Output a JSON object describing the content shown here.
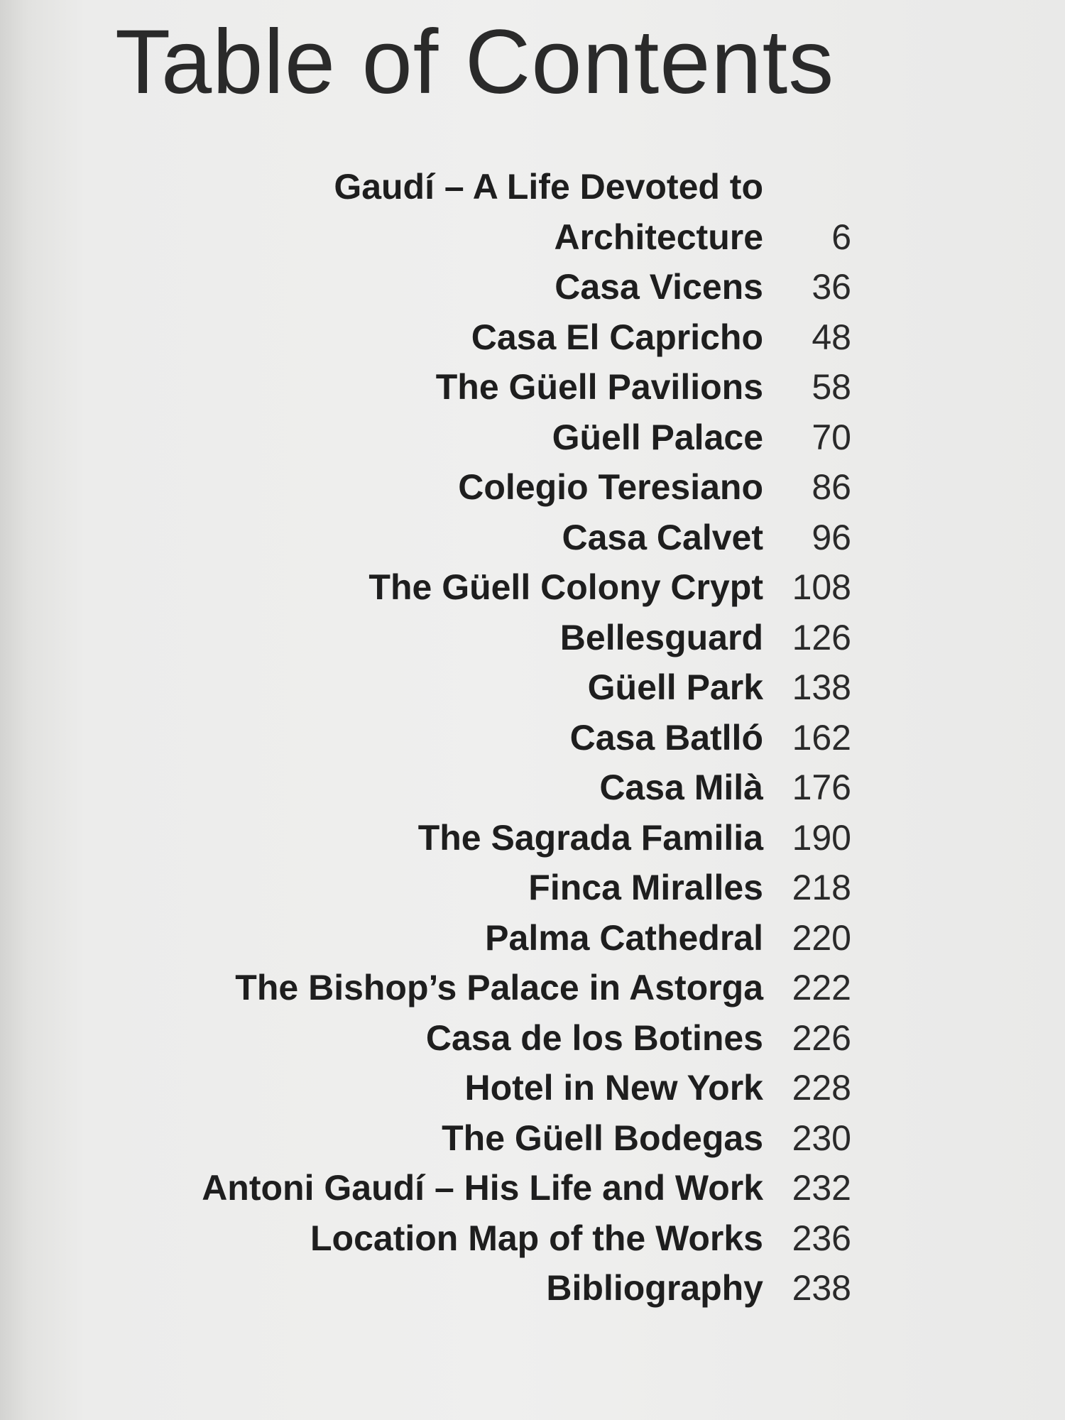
{
  "heading": "Table of Contents",
  "entries": [
    {
      "title": "Gaudí – A Life Devoted to\nArchitecture",
      "page": "6"
    },
    {
      "title": "Casa Vicens",
      "page": "36"
    },
    {
      "title": "Casa El Capricho",
      "page": "48"
    },
    {
      "title": "The Güell Pavilions",
      "page": "58"
    },
    {
      "title": "Güell Palace",
      "page": "70"
    },
    {
      "title": "Colegio Teresiano",
      "page": "86"
    },
    {
      "title": "Casa Calvet",
      "page": "96"
    },
    {
      "title": "The Güell Colony Crypt",
      "page": "108"
    },
    {
      "title": "Bellesguard",
      "page": "126"
    },
    {
      "title": "Güell Park",
      "page": "138"
    },
    {
      "title": "Casa Batlló",
      "page": "162"
    },
    {
      "title": "Casa Milà",
      "page": "176"
    },
    {
      "title": "The Sagrada Familia",
      "page": "190"
    },
    {
      "title": "Finca Miralles",
      "page": "218"
    },
    {
      "title": "Palma Cathedral",
      "page": "220"
    },
    {
      "title": "The Bishop’s Palace in Astorga",
      "page": "222"
    },
    {
      "title": "Casa de los Botines",
      "page": "226"
    },
    {
      "title": "Hotel in New York",
      "page": "228"
    },
    {
      "title": "The Güell Bodegas",
      "page": "230"
    },
    {
      "title": "Antoni Gaudí – His Life and Work",
      "page": "232"
    },
    {
      "title": "Location Map of the Works",
      "page": "236"
    },
    {
      "title": "Bibliography",
      "page": "238"
    }
  ]
}
